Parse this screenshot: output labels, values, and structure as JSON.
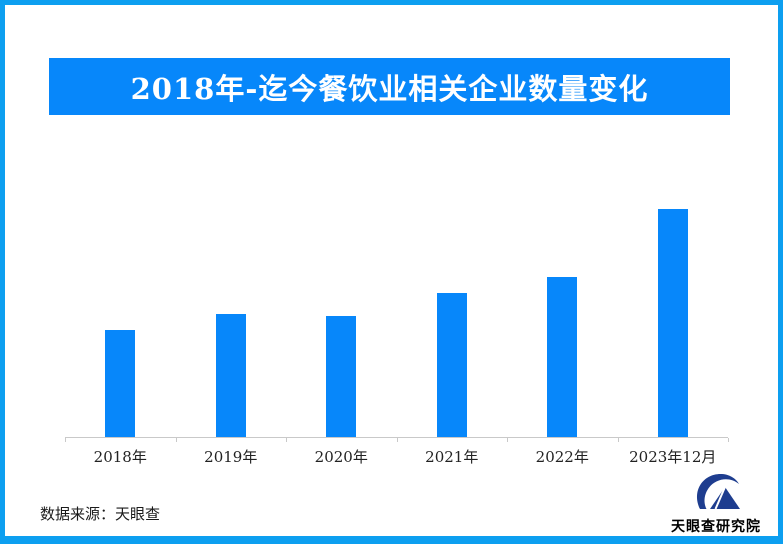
{
  "page": {
    "background_color": "#ffffff",
    "border_color": "#0d9ff0"
  },
  "banner": {
    "title": "2018年-迄今餐饮业相关企业数量变化",
    "bg_color": "#0787fa",
    "text_color": "#ffffff"
  },
  "chart_data": {
    "type": "bar",
    "title": "2018年-迄今餐饮业相关企业数量变化",
    "categories": [
      "2018年",
      "2019年",
      "2020年",
      "2021年",
      "2022年",
      "2023年12月"
    ],
    "values": [
      47,
      54,
      53,
      63,
      70,
      100
    ],
    "values_unit": "relative height, % of tallest bar (no numeric axis shown)",
    "xlabel": "",
    "ylabel": "",
    "bar_color": "#0787fa",
    "axis_color": "#c9c9c9",
    "grid": false,
    "legend": false,
    "value_labels_shown": false
  },
  "footer": {
    "source_text": "数据来源：天眼查"
  },
  "logo": {
    "mark": "tianyancha-eye-logo",
    "text": "天眼查研究院",
    "color": "#1e3d8f"
  }
}
